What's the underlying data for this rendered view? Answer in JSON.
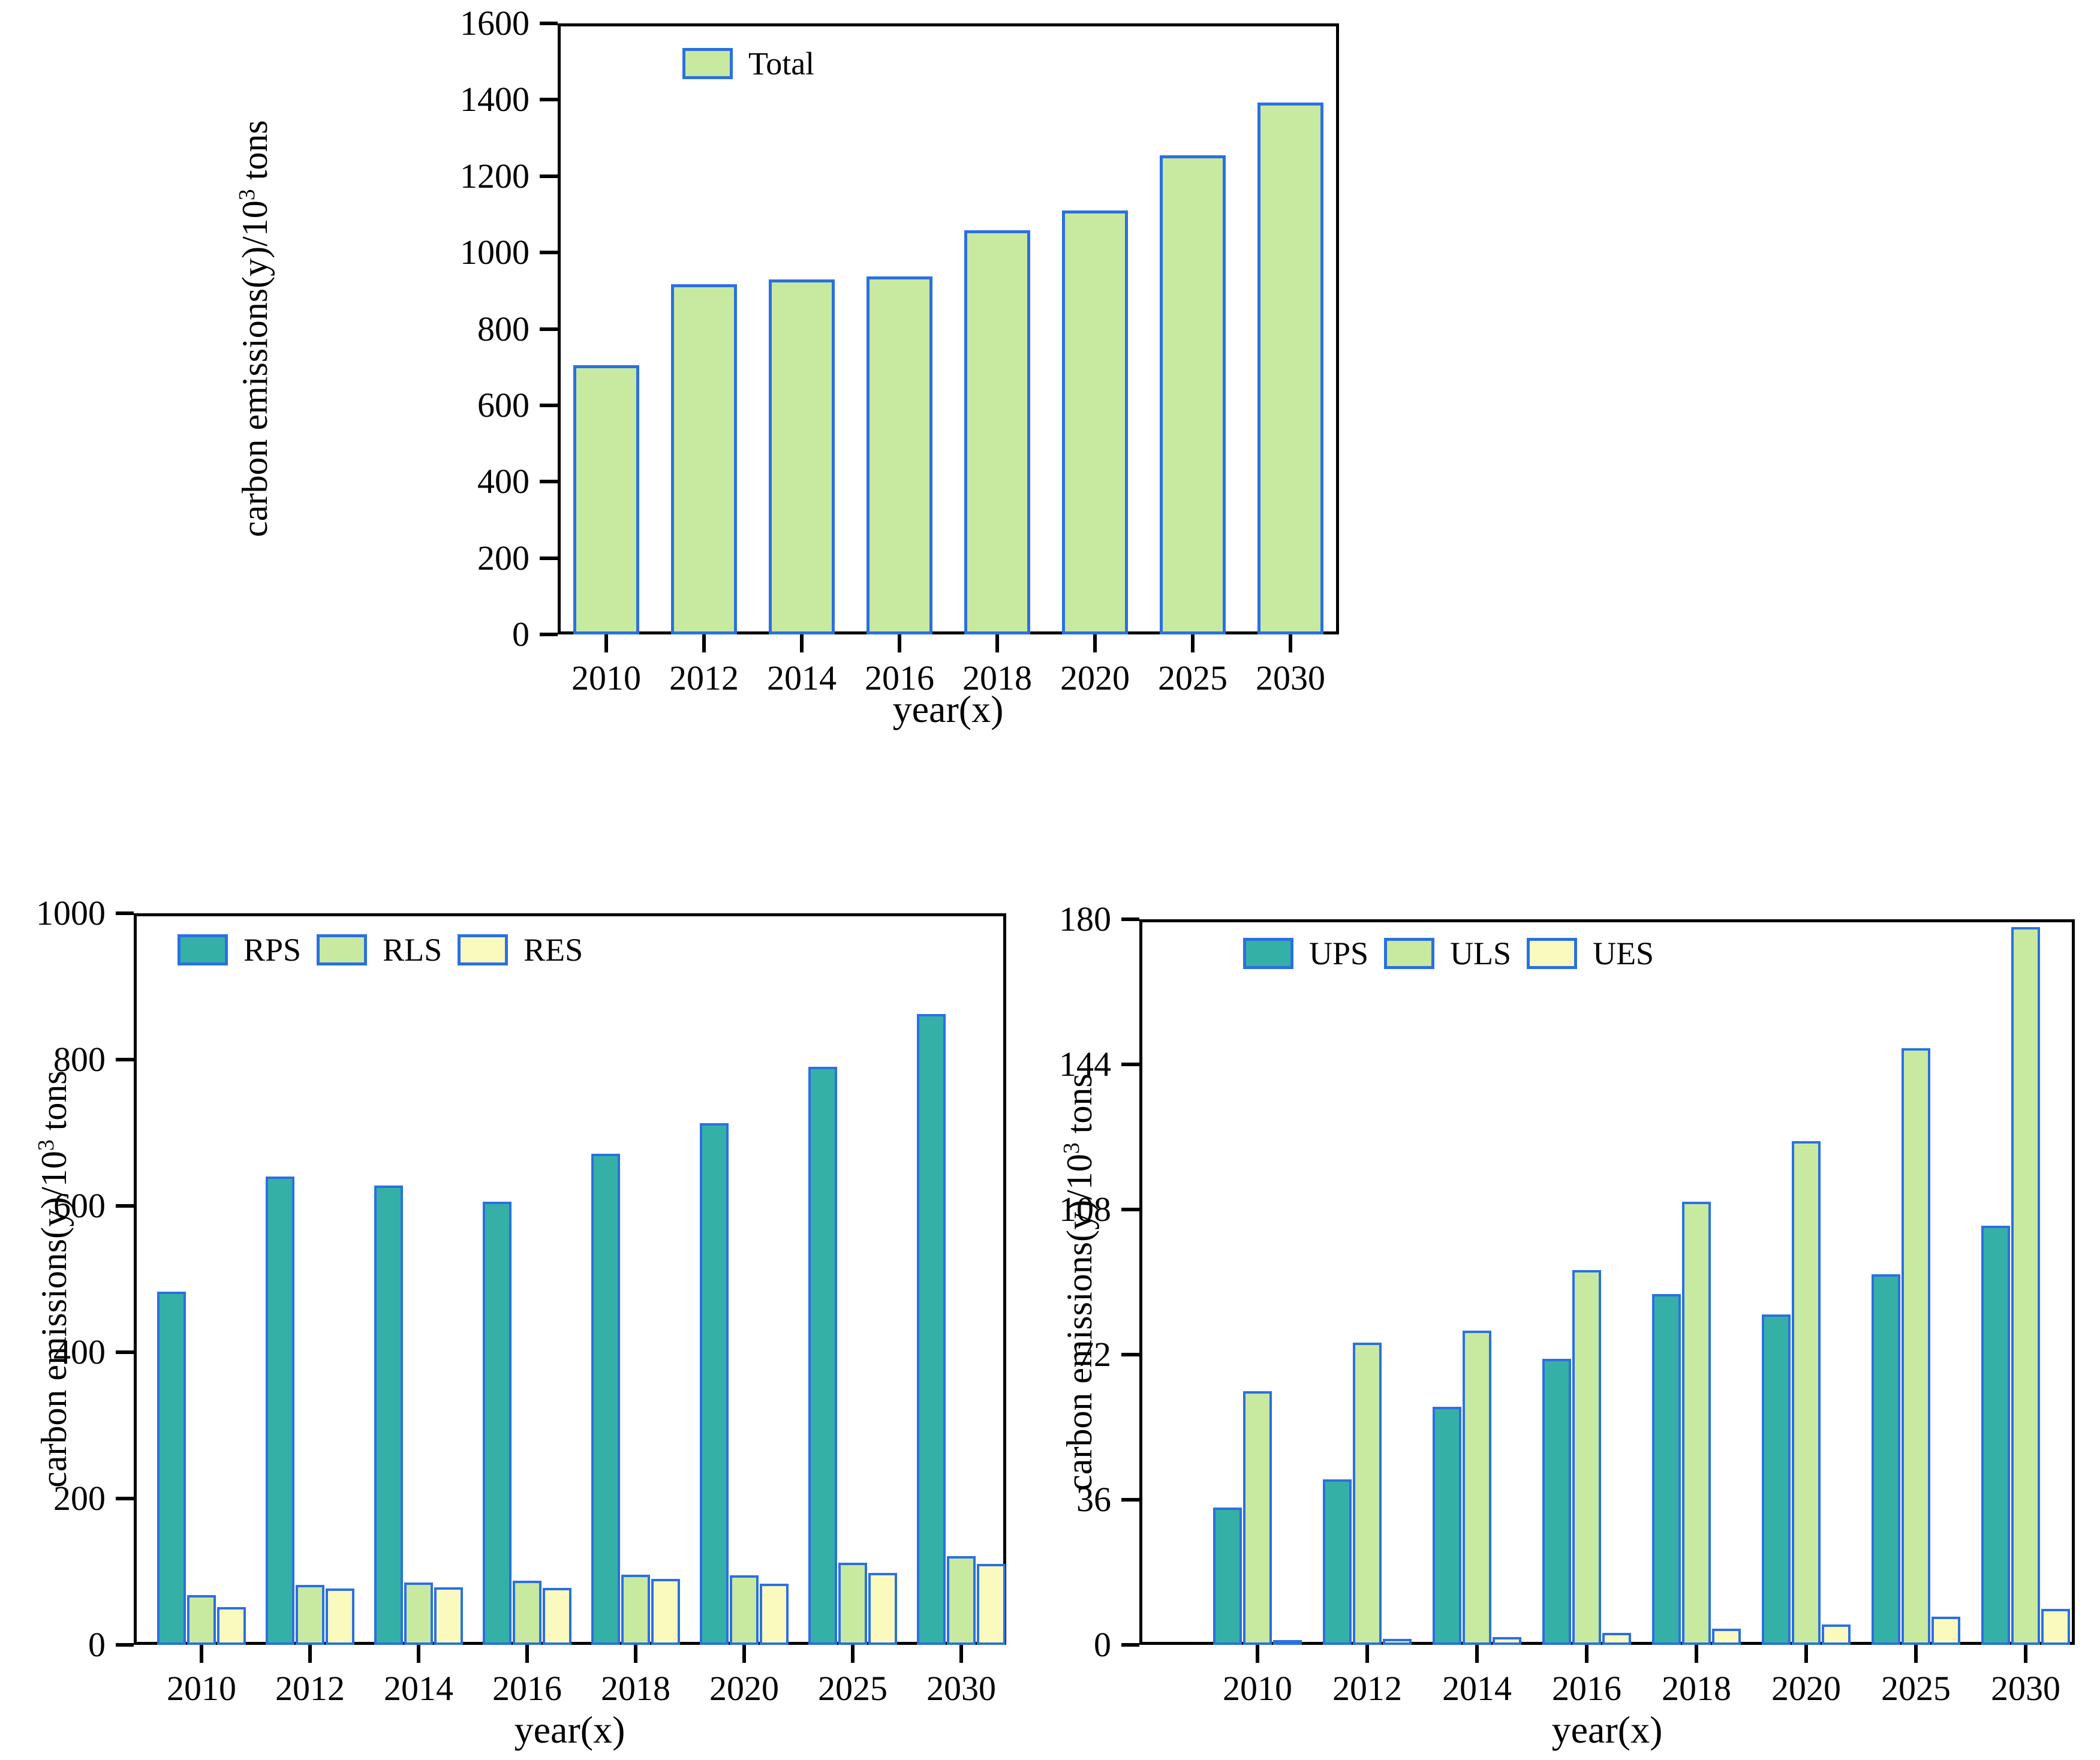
{
  "page": {
    "background": "#ffffff"
  },
  "colors": {
    "bar_green": "#c8e9a0",
    "bar_teal": "#35b0a7",
    "bar_yellow": "#fafabe",
    "bar_stroke_blue": "#2b70e0",
    "axis_black": "#000000"
  },
  "chart_data": [
    {
      "type": "bar",
      "title": "",
      "xlabel": "year(x)",
      "ylabel": "carbon emissions(y)/10³ tons",
      "ylabel_main": "carbon emissions(y)/10",
      "ylabel_sup": "3",
      "ylabel_tail": " tons",
      "categories": [
        "2010",
        "2012",
        "2014",
        "2016",
        "2018",
        "2020",
        "2025",
        "2030"
      ],
      "ylim": [
        0,
        1600
      ],
      "yticks": [
        0,
        200,
        400,
        600,
        800,
        1000,
        1200,
        1400,
        1600
      ],
      "grid": false,
      "legend_position": "top-left",
      "series": [
        {
          "name": "Total",
          "fill": "#c8e9a0",
          "stroke": "#2b70e0",
          "values": [
            705,
            917,
            930,
            937,
            1058,
            1110,
            1254,
            1392
          ]
        }
      ]
    },
    {
      "type": "bar",
      "title": "",
      "xlabel": "year(x)",
      "ylabel": "carbon emissions(y)/10³ tons",
      "ylabel_main": "carbon emissions(y)/10",
      "ylabel_sup": "3",
      "ylabel_tail": " tons",
      "categories": [
        "2010",
        "2012",
        "2014",
        "2016",
        "2018",
        "2020",
        "2025",
        "2030"
      ],
      "ylim": [
        0,
        1000
      ],
      "yticks": [
        0,
        200,
        400,
        600,
        800,
        1000
      ],
      "grid": false,
      "legend_position": "top-left",
      "series": [
        {
          "name": "RPS",
          "fill": "#35b0a7",
          "stroke": "#2b70e0",
          "values": [
            483,
            640,
            628,
            606,
            671,
            713,
            790,
            862
          ]
        },
        {
          "name": "RLS",
          "fill": "#c8e9a0",
          "stroke": "#2b70e0",
          "values": [
            68,
            82,
            85,
            88,
            96,
            95,
            112,
            121
          ]
        },
        {
          "name": "RES",
          "fill": "#fafabe",
          "stroke": "#2b70e0",
          "values": [
            52,
            77,
            79,
            78,
            90,
            84,
            98,
            111
          ]
        }
      ]
    },
    {
      "type": "bar",
      "title": "",
      "xlabel": "year(x)",
      "ylabel": "carbon emissions(y)/10³ tons",
      "ylabel_main": "carbon emissions(y)/10",
      "ylabel_sup": "3",
      "ylabel_tail": " tons",
      "categories": [
        "2010",
        "2012",
        "2014",
        "2016",
        "2018",
        "2020",
        "2025",
        "2030"
      ],
      "ylim": [
        0,
        180
      ],
      "yticks": [
        0,
        36,
        72,
        108,
        144,
        180
      ],
      "grid": false,
      "legend_position": "top-left",
      "series": [
        {
          "name": "UPS",
          "fill": "#35b0a7",
          "stroke": "#2b70e0",
          "values": [
            34,
            41,
            59,
            71,
            87,
            82,
            92,
            104
          ]
        },
        {
          "name": "ULS",
          "fill": "#c8e9a0",
          "stroke": "#2b70e0",
          "values": [
            63,
            75,
            78,
            93,
            110,
            125,
            148,
            178
          ]
        },
        {
          "name": "UES",
          "fill": "#fafabe",
          "stroke": "#2b70e0",
          "values": [
            1.2,
            1.5,
            2,
            3,
            4,
            5,
            7,
            9
          ]
        }
      ]
    }
  ]
}
